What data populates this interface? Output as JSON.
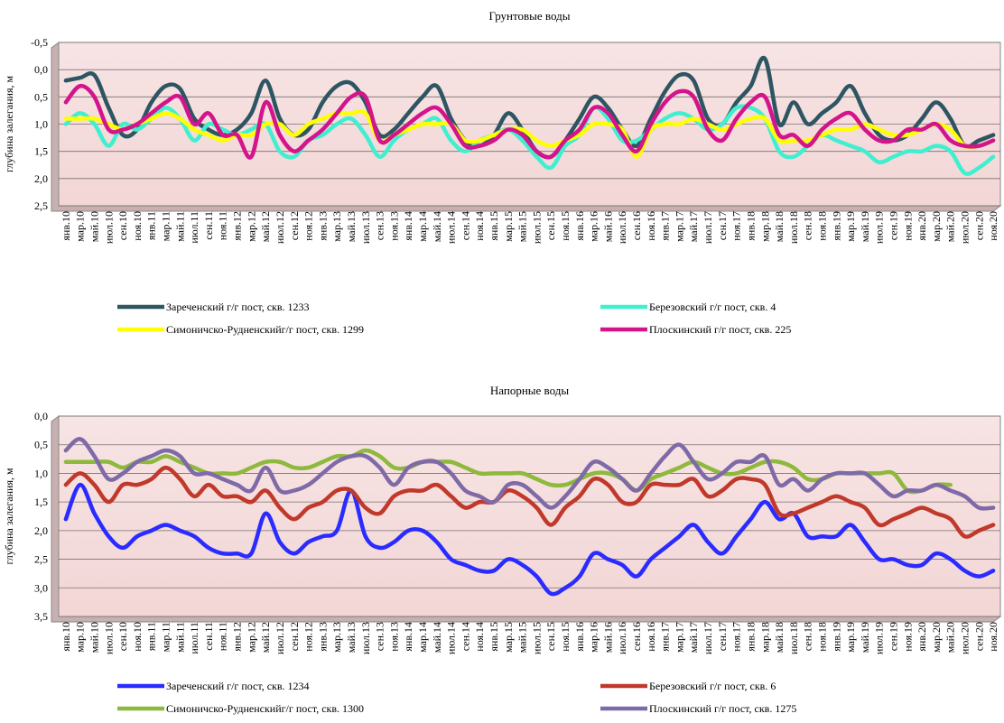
{
  "chart_data": [
    {
      "type": "line",
      "title": "Грунтовые воды",
      "y_label": "глубина залегания, м",
      "categories": [
        "янв.10",
        "мар.10",
        "май.10",
        "июл.10",
        "сен.10",
        "ноя.10",
        "янв.11",
        "мар.11",
        "май.11",
        "июл.11",
        "сен.11",
        "ноя.11",
        "янв.12",
        "мар.12",
        "май.12",
        "июл.12",
        "сен.12",
        "ноя.12",
        "янв.13",
        "мар.13",
        "май.13",
        "июл.13",
        "сен.13",
        "ноя.13",
        "янв.14",
        "мар.14",
        "май.14",
        "июл.14",
        "сен.14",
        "ноя.14",
        "янв.15",
        "мар.15",
        "май.15",
        "июл.15",
        "сен.15",
        "ноя.15",
        "янв.16",
        "мар.16",
        "май.16",
        "июл.16",
        "сен.16",
        "ноя.16",
        "янв.17",
        "мар.17",
        "май.17",
        "июл.17",
        "сен.17",
        "ноя.17",
        "янв.18",
        "мар.18",
        "май.18",
        "июл.18",
        "сен.18",
        "ноя.18",
        "янв.19",
        "мар.19",
        "май.19",
        "июл.19",
        "сен.19",
        "ноя.19",
        "янв.20",
        "мар.20",
        "май.20",
        "июл.20",
        "сен.20",
        "ноя.20"
      ],
      "ylim": [
        -0.5,
        2.5
      ],
      "y_inverted": true,
      "yticks": [
        {
          "value": -0.5,
          "label": "-0,5"
        },
        {
          "value": 0,
          "label": "0,0"
        },
        {
          "value": 0.5,
          "label": "0,5"
        },
        {
          "value": 1,
          "label": "1,0"
        },
        {
          "value": 1.5,
          "label": "1,5"
        },
        {
          "value": 2,
          "label": "2,0"
        },
        {
          "value": 2.5,
          "label": "2,5"
        }
      ],
      "grid": true,
      "series": [
        {
          "name": "Зареченский г/г пост, скв. 1233",
          "color": "#2d5562",
          "values": [
            0.2,
            0.15,
            0.1,
            0.7,
            1.2,
            1.1,
            0.6,
            0.3,
            0.35,
            0.9,
            1.1,
            1.2,
            1.1,
            0.8,
            0.2,
            0.9,
            1.2,
            1.1,
            0.6,
            0.3,
            0.25,
            0.6,
            1.2,
            1.1,
            0.8,
            0.5,
            0.3,
            0.9,
            1.3,
            1.4,
            1.2,
            0.8,
            1.1,
            1.5,
            1.6,
            1.3,
            0.9,
            0.5,
            0.7,
            1.1,
            1.4,
            0.9,
            0.4,
            0.1,
            0.2,
            0.9,
            1.0,
            0.6,
            0.3,
            -0.2,
            1.0,
            0.6,
            1.0,
            0.8,
            0.6,
            0.3,
            0.8,
            1.2,
            1.3,
            1.2,
            0.9,
            0.6,
            0.9,
            1.4,
            1.3,
            1.2
          ]
        },
        {
          "name": "Березовский г/г пост, скв. 4",
          "color": "#40efcf",
          "values": [
            1.0,
            0.8,
            1.0,
            1.4,
            1.0,
            1.1,
            0.9,
            0.7,
            0.9,
            1.3,
            1.0,
            1.1,
            1.2,
            1.1,
            1.0,
            1.5,
            1.6,
            1.3,
            1.2,
            1.0,
            0.9,
            1.2,
            1.6,
            1.3,
            1.1,
            1.0,
            0.9,
            1.3,
            1.5,
            1.3,
            1.2,
            1.1,
            1.3,
            1.6,
            1.8,
            1.4,
            1.2,
            0.7,
            0.9,
            1.3,
            1.3,
            1.1,
            0.9,
            0.8,
            0.9,
            1.1,
            1.0,
            0.7,
            0.7,
            0.9,
            1.5,
            1.6,
            1.4,
            1.2,
            1.3,
            1.4,
            1.5,
            1.7,
            1.6,
            1.5,
            1.5,
            1.4,
            1.5,
            1.9,
            1.8,
            1.6
          ]
        },
        {
          "name": "Симоничско-Рудненскийг/г пост, скв. 1299",
          "color": "#ffff00",
          "values": [
            0.9,
            0.9,
            0.9,
            1.0,
            1.1,
            1.0,
            0.9,
            0.8,
            0.9,
            1.1,
            1.2,
            1.3,
            1.2,
            1.2,
            1.0,
            1.0,
            1.2,
            1.0,
            0.9,
            0.8,
            0.8,
            0.8,
            1.3,
            1.2,
            1.1,
            1.0,
            1.0,
            1.0,
            1.3,
            1.3,
            1.2,
            1.1,
            1.1,
            1.3,
            1.4,
            1.3,
            1.2,
            1.0,
            1.0,
            1.1,
            1.6,
            1.1,
            1.0,
            1.0,
            0.9,
            1.0,
            1.1,
            1.0,
            0.9,
            0.9,
            1.3,
            1.3,
            1.3,
            1.2,
            1.1,
            1.1,
            1.0,
            1.1,
            1.2,
            1.2,
            1.1,
            1.0,
            1.1,
            1.4,
            1.4,
            1.3
          ]
        },
        {
          "name": "Плоскинский г/г пост, скв. 225",
          "color": "#d3148b",
          "values": [
            0.6,
            0.3,
            0.5,
            1.1,
            1.1,
            1.0,
            0.8,
            0.6,
            0.5,
            1.0,
            0.8,
            1.2,
            1.2,
            1.6,
            0.6,
            1.2,
            1.5,
            1.3,
            1.1,
            0.8,
            0.5,
            0.5,
            1.3,
            1.2,
            1.0,
            0.8,
            0.7,
            1.0,
            1.4,
            1.4,
            1.3,
            1.1,
            1.2,
            1.5,
            1.6,
            1.3,
            1.1,
            0.7,
            0.8,
            1.2,
            1.5,
            1.0,
            0.6,
            0.4,
            0.5,
            1.1,
            1.3,
            0.9,
            0.6,
            0.5,
            1.2,
            1.2,
            1.4,
            1.1,
            0.9,
            0.8,
            1.1,
            1.3,
            1.3,
            1.1,
            1.1,
            1.0,
            1.3,
            1.4,
            1.4,
            1.3
          ]
        }
      ]
    },
    {
      "type": "line",
      "title": "Напорные воды",
      "y_label": "глубина залегания, м",
      "categories": [
        "янв.10",
        "мар.10",
        "май.10",
        "июл.10",
        "сен.10",
        "ноя.10",
        "янв.11",
        "мар.11",
        "май.11",
        "июл.11",
        "сен.11",
        "ноя.11",
        "янв.12",
        "мар.12",
        "май.12",
        "июл.12",
        "сен.12",
        "ноя.12",
        "янв.13",
        "мар.13",
        "май.13",
        "июл.13",
        "сен.13",
        "ноя.13",
        "янв.14",
        "мар.14",
        "май.14",
        "июл.14",
        "сен.14",
        "ноя.14",
        "янв.15",
        "мар.15",
        "май.15",
        "июл.15",
        "сен.15",
        "ноя.15",
        "янв.16",
        "мар.16",
        "май.16",
        "июл.16",
        "сен.16",
        "ноя.16",
        "янв.17",
        "мар.17",
        "май.17",
        "июл.17",
        "сен.17",
        "ноя.17",
        "янв.18",
        "мар.18",
        "май.18",
        "июл.18",
        "сен.18",
        "ноя.18",
        "янв.19",
        "мар.19",
        "май.19",
        "июл.19",
        "сен.19",
        "ноя.19",
        "янв.20",
        "мар.20",
        "май.20",
        "июл.20",
        "сен.20",
        "ноя.20"
      ],
      "ylim": [
        0,
        3.5
      ],
      "y_inverted": true,
      "yticks": [
        {
          "value": 0,
          "label": "0,0"
        },
        {
          "value": 0.5,
          "label": "0,5"
        },
        {
          "value": 1,
          "label": "1,0"
        },
        {
          "value": 1.5,
          "label": "1,5"
        },
        {
          "value": 2,
          "label": "2,0"
        },
        {
          "value": 2.5,
          "label": "2,5"
        },
        {
          "value": 3,
          "label": "3,0"
        },
        {
          "value": 3.5,
          "label": "3,5"
        }
      ],
      "grid": true,
      "series": [
        {
          "name": "Зареченский г/г пост, скв. 1234",
          "color": "#2a2cff",
          "values": [
            1.8,
            1.2,
            1.7,
            2.1,
            2.3,
            2.1,
            2.0,
            1.9,
            2.0,
            2.1,
            2.3,
            2.4,
            2.4,
            2.4,
            1.7,
            2.2,
            2.4,
            2.2,
            2.1,
            2.0,
            1.3,
            2.1,
            2.3,
            2.2,
            2.0,
            2.0,
            2.2,
            2.5,
            2.6,
            2.7,
            2.7,
            2.5,
            2.6,
            2.8,
            3.1,
            3.0,
            2.8,
            2.4,
            2.5,
            2.6,
            2.8,
            2.5,
            2.3,
            2.1,
            1.9,
            2.2,
            2.4,
            2.1,
            1.8,
            1.5,
            1.8,
            1.7,
            2.1,
            2.1,
            2.1,
            1.9,
            2.2,
            2.5,
            2.5,
            2.6,
            2.6,
            2.4,
            2.5,
            2.7,
            2.8,
            2.7
          ]
        },
        {
          "name": "Березовский г/г пост, скв. 6",
          "color": "#c0392b",
          "values": [
            1.2,
            1.0,
            1.2,
            1.5,
            1.2,
            1.2,
            1.1,
            0.9,
            1.1,
            1.4,
            1.2,
            1.4,
            1.4,
            1.5,
            1.3,
            1.6,
            1.8,
            1.6,
            1.5,
            1.3,
            1.3,
            1.6,
            1.7,
            1.4,
            1.3,
            1.3,
            1.2,
            1.4,
            1.6,
            1.5,
            1.5,
            1.3,
            1.4,
            1.6,
            1.9,
            1.6,
            1.4,
            1.1,
            1.2,
            1.5,
            1.5,
            1.2,
            1.2,
            1.2,
            1.1,
            1.4,
            1.3,
            1.1,
            1.1,
            1.2,
            1.7,
            1.7,
            1.6,
            1.5,
            1.4,
            1.5,
            1.6,
            1.9,
            1.8,
            1.7,
            1.6,
            1.7,
            1.8,
            2.1,
            2.0,
            1.9
          ]
        },
        {
          "name": "Симоничско-Рудненскийг/г пост, скв. 1300",
          "color": "#8db93c",
          "values": [
            0.8,
            0.8,
            0.8,
            0.8,
            0.9,
            0.8,
            0.8,
            0.7,
            0.8,
            0.9,
            1.0,
            1.0,
            1.0,
            0.9,
            0.8,
            0.8,
            0.9,
            0.9,
            0.8,
            0.7,
            0.7,
            0.6,
            0.7,
            0.9,
            0.9,
            0.8,
            0.8,
            0.8,
            0.9,
            1.0,
            1.0,
            1.0,
            1.0,
            1.1,
            1.2,
            1.2,
            1.1,
            1.0,
            1.0,
            1.1,
            1.3,
            1.1,
            1.0,
            0.9,
            0.8,
            0.9,
            1.0,
            1.0,
            0.9,
            0.8,
            0.8,
            0.9,
            1.1,
            1.1,
            1.0,
            1.0,
            1.0,
            1.0,
            1.0,
            1.3,
            1.3,
            1.2,
            1.2,
            null,
            null,
            null
          ]
        },
        {
          "name": "Плоскинский г/г пост, скв. 1275",
          "color": "#7f6aa8",
          "values": [
            0.6,
            0.4,
            0.7,
            1.1,
            1.0,
            0.8,
            0.7,
            0.6,
            0.7,
            1.0,
            1.0,
            1.1,
            1.2,
            1.3,
            0.9,
            1.3,
            1.3,
            1.2,
            1.0,
            0.8,
            0.7,
            0.7,
            0.9,
            1.2,
            0.9,
            0.8,
            0.8,
            1.0,
            1.3,
            1.4,
            1.5,
            1.2,
            1.2,
            1.4,
            1.6,
            1.4,
            1.1,
            0.8,
            0.9,
            1.1,
            1.3,
            1.0,
            0.7,
            0.5,
            0.8,
            1.1,
            1.0,
            0.8,
            0.8,
            0.7,
            1.2,
            1.1,
            1.3,
            1.1,
            1.0,
            1.0,
            1.0,
            1.2,
            1.4,
            1.3,
            1.3,
            1.2,
            1.3,
            1.4,
            1.6,
            1.6
          ]
        }
      ]
    }
  ]
}
